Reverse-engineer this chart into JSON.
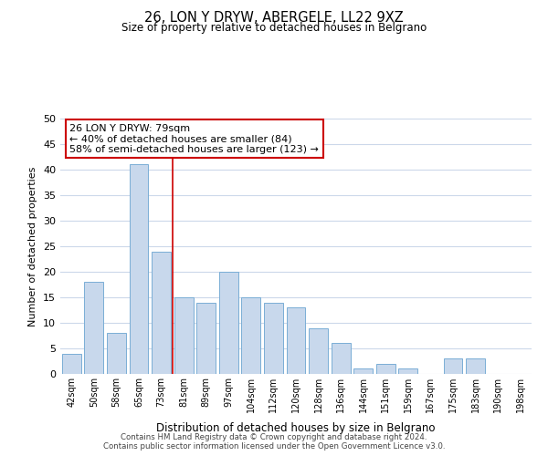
{
  "title": "26, LON Y DRYW, ABERGELE, LL22 9XZ",
  "subtitle": "Size of property relative to detached houses in Belgrano",
  "xlabel": "Distribution of detached houses by size in Belgrano",
  "ylabel": "Number of detached properties",
  "bar_labels": [
    "42sqm",
    "50sqm",
    "58sqm",
    "65sqm",
    "73sqm",
    "81sqm",
    "89sqm",
    "97sqm",
    "104sqm",
    "112sqm",
    "120sqm",
    "128sqm",
    "136sqm",
    "144sqm",
    "151sqm",
    "159sqm",
    "167sqm",
    "175sqm",
    "183sqm",
    "190sqm",
    "198sqm"
  ],
  "bar_values": [
    4,
    18,
    8,
    41,
    24,
    15,
    14,
    20,
    15,
    14,
    13,
    9,
    6,
    1,
    2,
    1,
    0,
    3,
    3,
    0,
    0
  ],
  "bar_color": "#c8d8ec",
  "bar_edge_color": "#7aaed6",
  "reference_line_color": "#cc0000",
  "annotation_title": "26 LON Y DRYW: 79sqm",
  "annotation_line1": "← 40% of detached houses are smaller (84)",
  "annotation_line2": "58% of semi-detached houses are larger (123) →",
  "annotation_box_edge_color": "#cc0000",
  "ylim": [
    0,
    50
  ],
  "yticks": [
    0,
    5,
    10,
    15,
    20,
    25,
    30,
    35,
    40,
    45,
    50
  ],
  "footer_line1": "Contains HM Land Registry data © Crown copyright and database right 2024.",
  "footer_line2": "Contains public sector information licensed under the Open Government Licence v3.0.",
  "background_color": "#ffffff",
  "grid_color": "#ccd8ea"
}
